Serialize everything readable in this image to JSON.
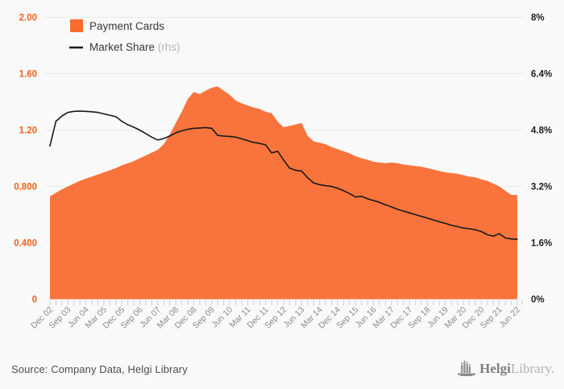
{
  "chart_data": {
    "type": "area",
    "description": "Quarterly area chart of Payment Cards volume (left axis) with Market Share % line on right-hand axis, Dec 2002 - Jun 2022",
    "x_label_step": 3,
    "x_labels_shown": [
      "Dec 02",
      "Sep 03",
      "Jun 04",
      "Mar 05",
      "Dec 05",
      "Sep 06",
      "Jun 07",
      "Mar 08",
      "Dec 08",
      "Sep 09",
      "Jun 10",
      "Mar 11",
      "Dec 11",
      "Sep 12",
      "Jun 13",
      "Mar 14",
      "Dec 14",
      "Sep 15",
      "Jun 16",
      "Mar 17",
      "Dec 17",
      "Sep 18",
      "Jun 19",
      "Mar 20",
      "Dec 20",
      "Sep 21",
      "Jun 22"
    ],
    "left_axis": {
      "min": 0,
      "max": 2,
      "tick_values": [
        0,
        0.4,
        0.8,
        1.2,
        1.6,
        2.0
      ],
      "tick_labels": [
        "0",
        "0.400",
        "0.800",
        "1.20",
        "1.60",
        "2.00"
      ]
    },
    "right_axis": {
      "min": 0,
      "max": 8,
      "tick_values": [
        0,
        1.6,
        3.2,
        4.8,
        6.4,
        8
      ],
      "tick_labels": [
        "0%",
        "1.6%",
        "3.2%",
        "4.8%",
        "6.4%",
        "8%"
      ]
    },
    "grid": true,
    "legend_position": "top-left",
    "series": [
      {
        "name": "Payment Cards",
        "type": "area",
        "axis": "left",
        "color": "#f9743c",
        "values": [
          0.73,
          0.755,
          0.78,
          0.8,
          0.82,
          0.84,
          0.855,
          0.87,
          0.885,
          0.9,
          0.915,
          0.93,
          0.95,
          0.965,
          0.98,
          1.0,
          1.02,
          1.04,
          1.06,
          1.1,
          1.17,
          1.25,
          1.33,
          1.42,
          1.47,
          1.455,
          1.48,
          1.5,
          1.51,
          1.48,
          1.45,
          1.41,
          1.39,
          1.375,
          1.36,
          1.35,
          1.33,
          1.32,
          1.26,
          1.22,
          1.23,
          1.24,
          1.25,
          1.16,
          1.12,
          1.11,
          1.1,
          1.08,
          1.065,
          1.05,
          1.035,
          1.015,
          1.0,
          0.99,
          0.975,
          0.97,
          0.965,
          0.97,
          0.965,
          0.955,
          0.95,
          0.945,
          0.94,
          0.93,
          0.92,
          0.91,
          0.9,
          0.895,
          0.89,
          0.88,
          0.87,
          0.865,
          0.85,
          0.84,
          0.82,
          0.8,
          0.77,
          0.74,
          0.74
        ]
      },
      {
        "name": "Market Share",
        "type": "line",
        "axis": "right",
        "color": "#1a1a1a",
        "values": [
          4.35,
          5.05,
          5.2,
          5.3,
          5.33,
          5.34,
          5.33,
          5.32,
          5.3,
          5.26,
          5.22,
          5.18,
          5.05,
          4.95,
          4.88,
          4.8,
          4.7,
          4.6,
          4.52,
          4.56,
          4.63,
          4.72,
          4.78,
          4.82,
          4.85,
          4.86,
          4.87,
          4.85,
          4.65,
          4.63,
          4.62,
          4.6,
          4.55,
          4.5,
          4.45,
          4.42,
          4.38,
          4.15,
          4.2,
          3.95,
          3.72,
          3.66,
          3.64,
          3.45,
          3.3,
          3.25,
          3.22,
          3.2,
          3.15,
          3.08,
          3.0,
          2.9,
          2.92,
          2.85,
          2.8,
          2.75,
          2.68,
          2.62,
          2.55,
          2.5,
          2.45,
          2.4,
          2.35,
          2.3,
          2.25,
          2.2,
          2.15,
          2.1,
          2.06,
          2.02,
          2.0,
          1.97,
          1.92,
          1.83,
          1.79,
          1.86,
          1.74,
          1.71,
          1.7
        ]
      }
    ]
  },
  "legend": {
    "area_label": "Payment Cards",
    "line_label": "Market Share",
    "line_suffix": " (rhs)"
  },
  "footer": {
    "source": "Source: Company Data, Helgi Library",
    "brand_bold": "Helgi",
    "brand_light": "Library."
  },
  "colors": {
    "background": "#f9f9f9",
    "area_fill": "#f9743c",
    "legend_swatch": "#f96b2c",
    "line": "#1a1a1a",
    "left_tick_text": "#f1611d",
    "right_tick_text": "#1d1d1d",
    "gridline": "#e9e9e9",
    "axis_tick": "#c5cbe2",
    "x_label_text": "#8b8b8b",
    "legend_text": "#383838",
    "legend_suffix_text": "#b5b5b5",
    "logo_gray": "#8c8c8c"
  }
}
